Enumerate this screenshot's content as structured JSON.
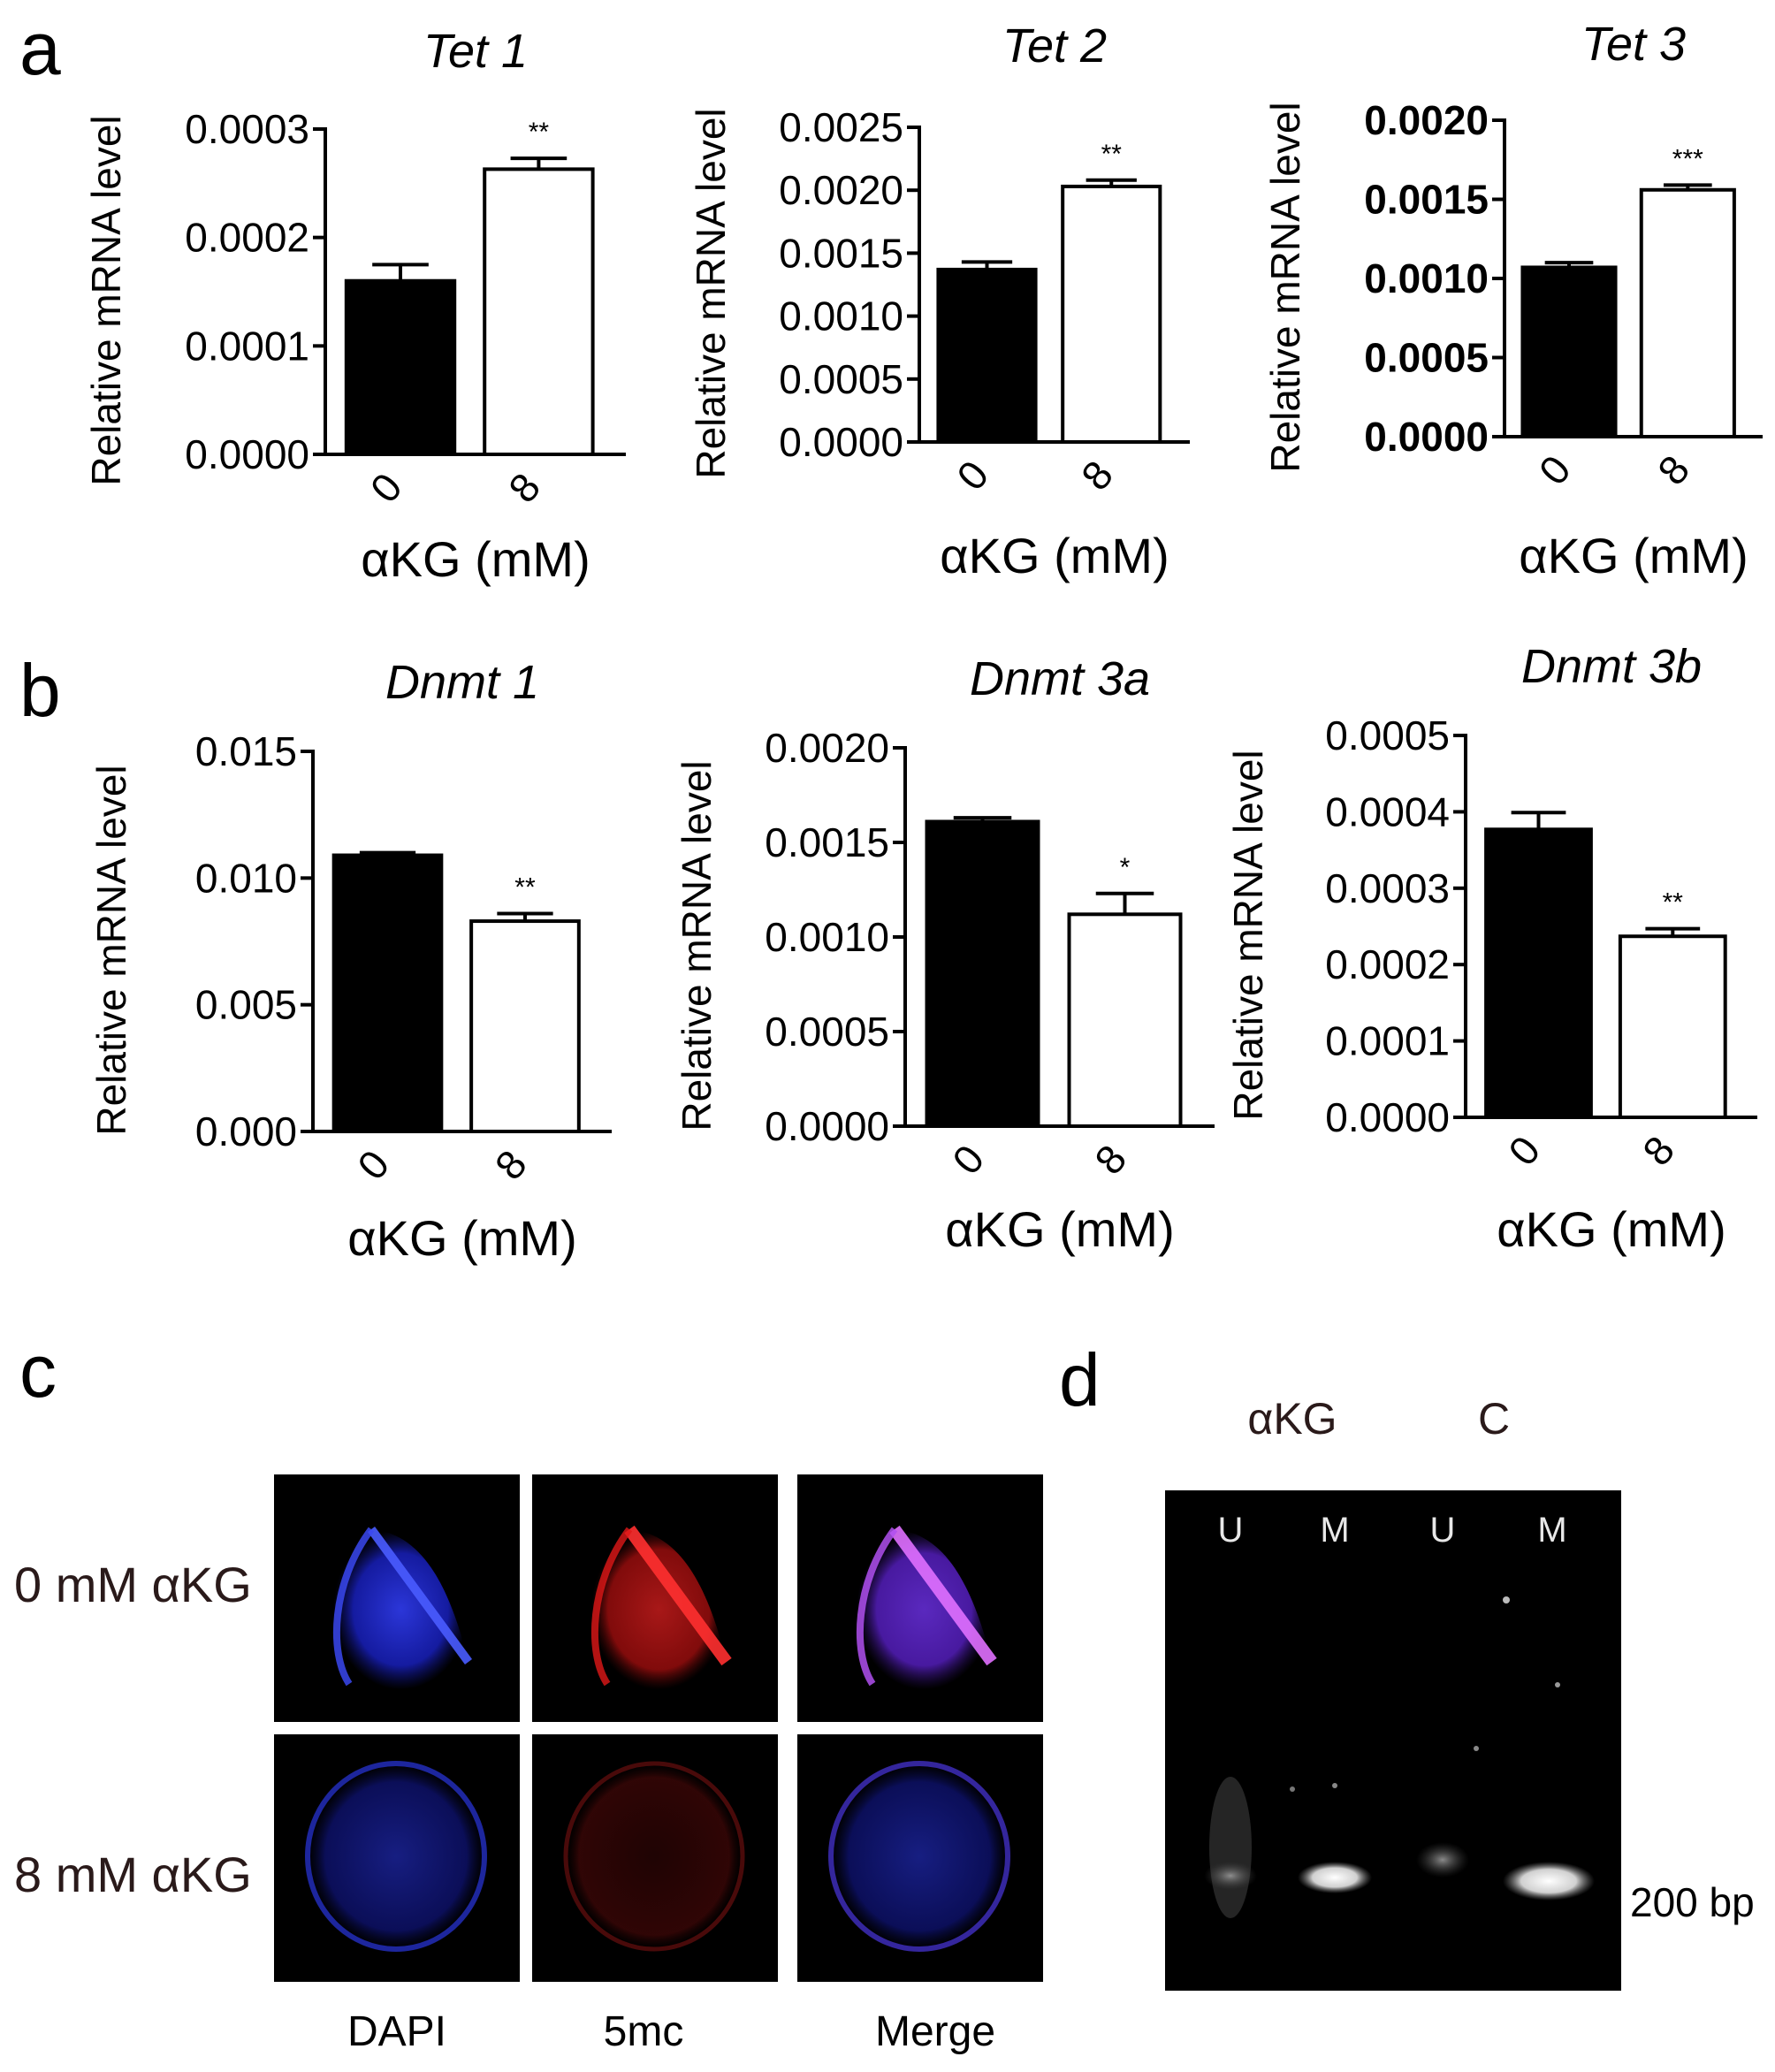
{
  "panels": {
    "a": "a",
    "b": "b",
    "c": "c",
    "d": "d"
  },
  "chart_data": [
    {
      "type": "bar",
      "title": "Tet 1",
      "ylabel": "Relative mRNA level",
      "xlabel": "αKG (mM)",
      "categories": [
        "0",
        "8"
      ],
      "values": [
        0.00016,
        0.000263
      ],
      "errors": [
        1.5e-05,
        1e-05
      ],
      "fills": [
        "#000000",
        "#ffffff"
      ],
      "significance": [
        "",
        "**"
      ],
      "ylim": [
        0,
        0.0003
      ],
      "yticks": [
        "0.0000",
        "0.0001",
        "0.0002",
        "0.0003"
      ],
      "ytick_bold": false
    },
    {
      "type": "bar",
      "title": "Tet 2",
      "ylabel": "Relative mRNA level",
      "xlabel": "αKG (mM)",
      "categories": [
        "0",
        "8"
      ],
      "values": [
        0.00137,
        0.00203
      ],
      "errors": [
        6e-05,
        5e-05
      ],
      "fills": [
        "#000000",
        "#ffffff"
      ],
      "significance": [
        "",
        "**"
      ],
      "ylim": [
        0,
        0.0025
      ],
      "yticks": [
        "0.0000",
        "0.0005",
        "0.0010",
        "0.0015",
        "0.0020",
        "0.0025"
      ],
      "ytick_bold": false
    },
    {
      "type": "bar",
      "title": "Tet 3",
      "ylabel": "Relative mRNA level",
      "xlabel": "αKG (mM)",
      "categories": [
        "0",
        "8"
      ],
      "values": [
        0.00107,
        0.00156
      ],
      "errors": [
        3e-05,
        3e-05
      ],
      "fills": [
        "#000000",
        "#ffffff"
      ],
      "significance": [
        "",
        "***"
      ],
      "ylim": [
        0,
        0.002
      ],
      "yticks": [
        "0.0000",
        "0.0005",
        "0.0010",
        "0.0015",
        "0.0020"
      ],
      "ytick_bold": true
    },
    {
      "type": "bar",
      "title": "Dnmt 1",
      "ylabel": "Relative mRNA level",
      "xlabel": "αKG (mM)",
      "categories": [
        "0",
        "8"
      ],
      "values": [
        0.0109,
        0.0083
      ],
      "errors": [
        0.0001,
        0.0003
      ],
      "fills": [
        "#000000",
        "#ffffff"
      ],
      "significance": [
        "",
        "**"
      ],
      "ylim": [
        0,
        0.015
      ],
      "yticks": [
        "0.000",
        "0.005",
        "0.010",
        "0.015"
      ],
      "ytick_bold": false
    },
    {
      "type": "bar",
      "title": "Dnmt 3a",
      "ylabel": "Relative mRNA level",
      "xlabel": "αKG (mM)",
      "categories": [
        "0",
        "8"
      ],
      "values": [
        0.00161,
        0.00112
      ],
      "errors": [
        2e-05,
        0.00011
      ],
      "fills": [
        "#000000",
        "#ffffff"
      ],
      "significance": [
        "",
        "*"
      ],
      "ylim": [
        0,
        0.002
      ],
      "yticks": [
        "0.0000",
        "0.0005",
        "0.0010",
        "0.0015",
        "0.0020"
      ],
      "ytick_bold": false
    },
    {
      "type": "bar",
      "title": "Dnmt 3b",
      "ylabel": "Relative mRNA level",
      "xlabel": "αKG (mM)",
      "categories": [
        "0",
        "8"
      ],
      "values": [
        0.000377,
        0.000237
      ],
      "errors": [
        2.2e-05,
        1e-05
      ],
      "fills": [
        "#000000",
        "#ffffff"
      ],
      "significance": [
        "",
        "**"
      ],
      "ylim": [
        0,
        0.0005
      ],
      "yticks": [
        "0.0000",
        "0.0001",
        "0.0002",
        "0.0003",
        "0.0004",
        "0.0005"
      ],
      "ytick_bold": false
    }
  ],
  "microscopy": {
    "rows": [
      "0 mM αKG",
      "8 mM αKG"
    ],
    "columns": [
      "DAPI",
      "5mc",
      "Merge"
    ]
  },
  "gel": {
    "groups": [
      "αKG",
      "C"
    ],
    "lanes": [
      "U",
      "M",
      "U",
      "M"
    ],
    "marker": "200 bp"
  }
}
